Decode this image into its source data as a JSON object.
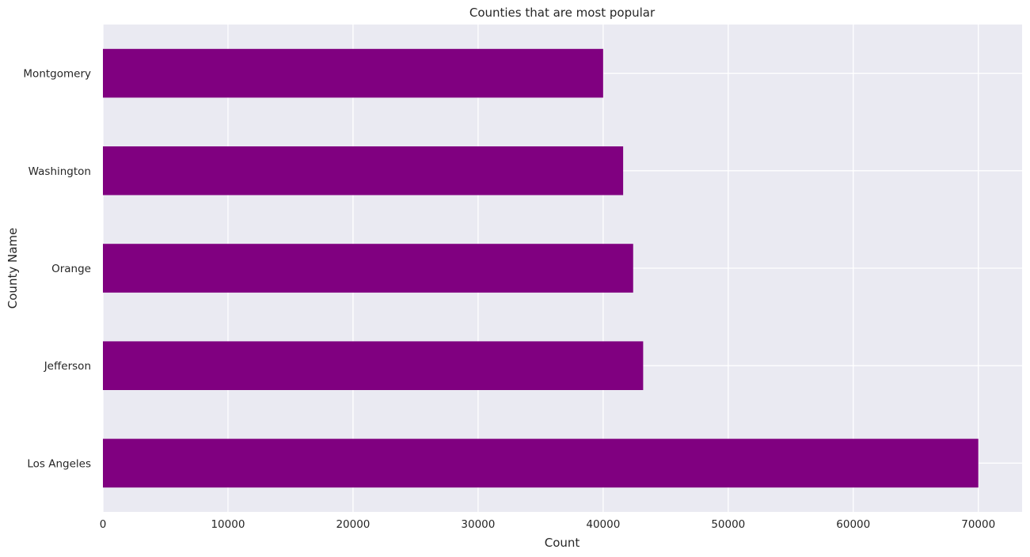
{
  "chart_data": {
    "type": "bar",
    "orientation": "horizontal",
    "title": "Counties that are most popular",
    "xlabel": "Count",
    "ylabel": "County Name",
    "categories": [
      "Los Angeles",
      "Jefferson",
      "Orange",
      "Washington",
      "Montgomery"
    ],
    "values": [
      70000,
      43200,
      42400,
      41600,
      40000
    ],
    "xlim": [
      0,
      73500
    ],
    "x_ticks": [
      0,
      10000,
      20000,
      30000,
      40000,
      50000,
      60000,
      70000
    ],
    "x_tick_labels": [
      "0",
      "10000",
      "20000",
      "30000",
      "40000",
      "50000",
      "60000",
      "70000"
    ],
    "grid": true,
    "colors": {
      "bar": "#800080",
      "plot_background": "#eaeaf2",
      "grid": "#ffffff"
    }
  }
}
